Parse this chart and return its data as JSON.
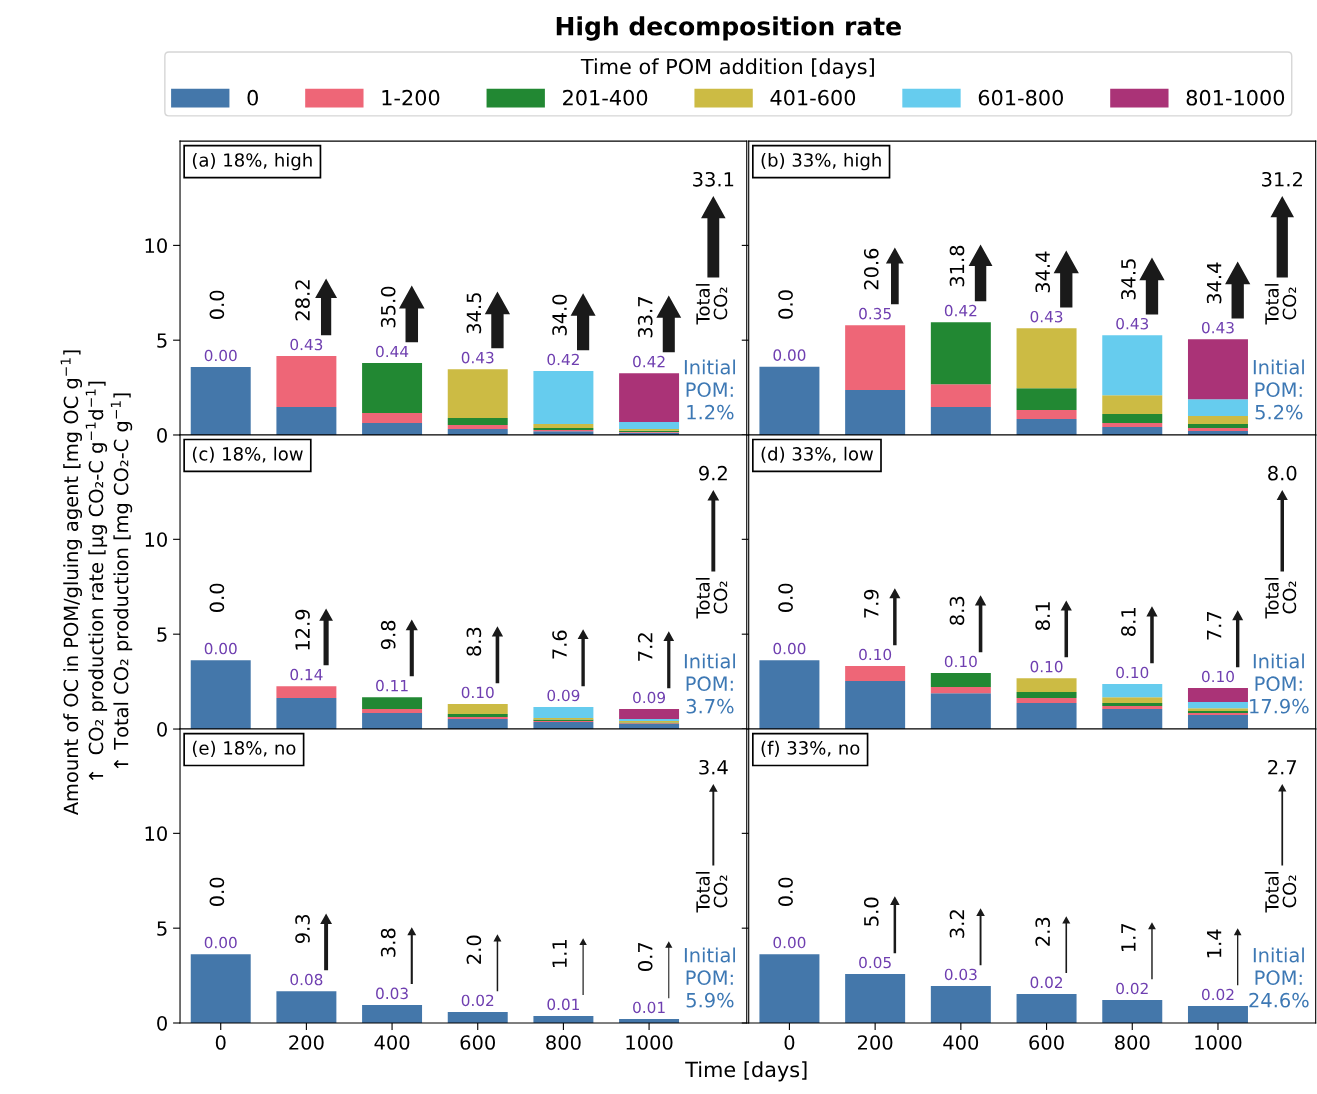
{
  "chart_data": [
    {
      "type": "bar",
      "stacked": true,
      "title": "High decomposition rate",
      "subtitle": "(a) 18%, high",
      "legend_title": "Time of POM addition [days]",
      "legend": "top",
      "grid": false,
      "tick_labels": "y",
      "x": [
        0,
        200,
        400,
        600,
        800,
        1000
      ],
      "xlim": [
        -95,
        1228
      ],
      "ylim": [
        0,
        15.5
      ],
      "xticks": [
        0,
        200,
        400,
        600,
        800,
        1000
      ],
      "yticks": [
        0,
        5,
        10
      ],
      "series": [
        {
          "name": "0",
          "color": "#4477aa",
          "values": [
            3.58,
            1.47,
            0.63,
            0.32,
            0.2,
            0.12
          ]
        },
        {
          "name": "1-200",
          "color": "#ee6677",
          "values": [
            null,
            2.69,
            0.53,
            0.21,
            0.06,
            0.04
          ]
        },
        {
          "name": "201-400",
          "color": "#228833",
          "values": [
            null,
            null,
            2.63,
            0.37,
            0.11,
            0.06
          ]
        },
        {
          "name": "401-600",
          "color": "#ccbb44",
          "values": [
            null,
            null,
            null,
            2.57,
            0.21,
            0.1
          ]
        },
        {
          "name": "601-800",
          "color": "#66ccee",
          "values": [
            null,
            null,
            null,
            null,
            2.79,
            0.36
          ]
        },
        {
          "name": "801-1000",
          "color": "#aa3377",
          "values": [
            null,
            null,
            null,
            null,
            null,
            2.58
          ]
        }
      ],
      "annotations": [
        {
          "text": "0.00",
          "x": 0,
          "y": 3.58
        },
        {
          "text": "0.43",
          "x": 200,
          "y": 4.16
        },
        {
          "text": "0.44",
          "x": 400,
          "y": 3.79
        },
        {
          "text": "0.43",
          "x": 600,
          "y": 3.47
        },
        {
          "text": "0.42",
          "x": 800,
          "y": 3.37
        },
        {
          "text": "0.42",
          "x": 1000,
          "y": 3.26
        },
        "0.0",
        "28.2",
        "35.0",
        "34.5",
        "34.0",
        "33.7",
        "33.1",
        "Total\nCO₂",
        "Initial\nPOM:\n1.2%"
      ]
    },
    {
      "type": "bar",
      "stacked": true,
      "subtitle": "(b) 33%, high",
      "grid": false,
      "tick_labels": false,
      "x": [
        0,
        200,
        400,
        600,
        800,
        1000
      ],
      "xlim": [
        -95,
        1228
      ],
      "ylim": [
        0,
        15.5
      ],
      "xticks": [
        0,
        200,
        400,
        600,
        800,
        1000
      ],
      "yticks": [
        0,
        5,
        10
      ],
      "series": [
        {
          "color": "#4477aa",
          "values": [
            3.6,
            2.37,
            1.47,
            0.84,
            0.42,
            0.21
          ]
        },
        {
          "color": "#ee6677",
          "values": [
            null,
            3.42,
            1.21,
            0.48,
            0.21,
            0.16
          ]
        },
        {
          "color": "#228833",
          "values": [
            null,
            null,
            3.27,
            1.15,
            0.47,
            0.21
          ]
        },
        {
          "color": "#ccbb44",
          "values": [
            null,
            null,
            null,
            3.16,
            1.0,
            0.42
          ]
        },
        {
          "color": "#66ccee",
          "values": [
            null,
            null,
            null,
            null,
            3.16,
            0.89
          ]
        },
        {
          "color": "#aa3377",
          "values": [
            null,
            null,
            null,
            null,
            null,
            3.16
          ]
        }
      ],
      "annotations": [
        {
          "text": "0.00",
          "x": 0,
          "y": 3.6
        },
        {
          "text": "0.35",
          "x": 200,
          "y": 5.79
        },
        {
          "text": "0.42",
          "x": 400,
          "y": 5.95
        },
        {
          "text": "0.43",
          "x": 600,
          "y": 5.63
        },
        {
          "text": "0.43",
          "x": 800,
          "y": 5.26
        },
        {
          "text": "0.43",
          "x": 1000,
          "y": 5.05
        },
        "0.0",
        "20.6",
        "31.8",
        "34.4",
        "34.5",
        "34.4",
        "31.2",
        "Total\nCO₂",
        "Initial\nPOM:\n5.2%"
      ]
    },
    {
      "type": "bar",
      "stacked": true,
      "subtitle": "(c) 18%, low",
      "grid": false,
      "tick_labels": "y",
      "ylabel": "Amount of OC in POM/gluing agent [mg OC g$^{−1}$]\n↑  CO₂ production rate [μg CO₂-C g$^{−1}$d$^{−1}$]\n↑ Total CO₂ production [mg CO₂-C g$^{−1}$]",
      "x": [
        0,
        200,
        400,
        600,
        800,
        1000
      ],
      "xlim": [
        -95,
        1228
      ],
      "ylim": [
        0,
        15.5
      ],
      "xticks": [
        0,
        200,
        400,
        600,
        800,
        1000
      ],
      "yticks": [
        0,
        5,
        10
      ],
      "series": [
        {
          "color": "#4477aa",
          "values": [
            3.63,
            1.63,
            0.84,
            0.53,
            0.37,
            0.26
          ]
        },
        {
          "color": "#ee6677",
          "values": [
            null,
            0.63,
            0.21,
            0.1,
            0.05,
            0.04
          ]
        },
        {
          "color": "#228833",
          "values": [
            null,
            null,
            0.63,
            0.16,
            0.08,
            0.05
          ]
        },
        {
          "color": "#ccbb44",
          "values": [
            null,
            null,
            null,
            0.53,
            0.08,
            0.08
          ]
        },
        {
          "color": "#66ccee",
          "values": [
            null,
            null,
            null,
            null,
            0.58,
            0.1
          ]
        },
        {
          "color": "#aa3377",
          "values": [
            null,
            null,
            null,
            null,
            null,
            0.52
          ]
        }
      ],
      "annotations": [
        {
          "text": "0.00",
          "x": 0,
          "y": 3.63
        },
        {
          "text": "0.14",
          "x": 200,
          "y": 2.26
        },
        {
          "text": "0.11",
          "x": 400,
          "y": 1.68
        },
        {
          "text": "0.10",
          "x": 600,
          "y": 1.32
        },
        {
          "text": "0.09",
          "x": 800,
          "y": 1.16
        },
        {
          "text": "0.09",
          "x": 1000,
          "y": 1.05
        },
        "0.0",
        "12.9",
        "9.8",
        "8.3",
        "7.6",
        "7.2",
        "9.2",
        "Total\nCO₂",
        "Initial\nPOM:\n3.7%"
      ]
    },
    {
      "type": "bar",
      "stacked": true,
      "subtitle": "(d) 33%, low",
      "grid": false,
      "tick_labels": false,
      "x": [
        0,
        200,
        400,
        600,
        800,
        1000
      ],
      "xlim": [
        -95,
        1228
      ],
      "ylim": [
        0,
        15.5
      ],
      "xticks": [
        0,
        200,
        400,
        600,
        800,
        1000
      ],
      "yticks": [
        0,
        5,
        10
      ],
      "series": [
        {
          "color": "#4477aa",
          "values": [
            3.63,
            2.53,
            1.89,
            1.37,
            1.05,
            0.74
          ]
        },
        {
          "color": "#ee6677",
          "values": [
            null,
            0.79,
            0.32,
            0.26,
            0.16,
            0.1
          ]
        },
        {
          "color": "#228833",
          "values": [
            null,
            null,
            0.74,
            0.32,
            0.16,
            0.11
          ]
        },
        {
          "color": "#ccbb44",
          "values": [
            null,
            null,
            null,
            0.73,
            0.31,
            0.15
          ]
        },
        {
          "color": "#66ccee",
          "values": [
            null,
            null,
            null,
            null,
            0.69,
            0.32
          ]
        },
        {
          "color": "#aa3377",
          "values": [
            null,
            null,
            null,
            null,
            null,
            0.74
          ]
        }
      ],
      "annotations": [
        {
          "text": "0.00",
          "x": 0,
          "y": 3.63
        },
        {
          "text": "0.10",
          "x": 200,
          "y": 3.32
        },
        {
          "text": "0.10",
          "x": 400,
          "y": 2.95
        },
        {
          "text": "0.10",
          "x": 600,
          "y": 2.68
        },
        {
          "text": "0.10",
          "x": 800,
          "y": 2.37
        },
        {
          "text": "0.10",
          "x": 1000,
          "y": 2.16
        },
        "0.0",
        "7.9",
        "8.3",
        "8.1",
        "8.1",
        "7.7",
        "8.0",
        "Total\nCO₂",
        "Initial\nPOM:\n17.9%"
      ]
    },
    {
      "type": "bar",
      "stacked": true,
      "subtitle": "(e) 18%, no",
      "grid": false,
      "xlabel": "Time [days]",
      "x": [
        0,
        200,
        400,
        600,
        800,
        1000
      ],
      "xlim": [
        -95,
        1228
      ],
      "ylim": [
        0,
        15.5
      ],
      "xticks": [
        0,
        200,
        400,
        600,
        800,
        1000
      ],
      "yticks": [
        0,
        5,
        10
      ],
      "series": [
        {
          "color": "#4477aa",
          "values": [
            3.63,
            1.68,
            0.95,
            0.58,
            0.37,
            0.21
          ]
        }
      ],
      "annotations": [
        {
          "text": "0.00",
          "x": 0,
          "y": 3.63
        },
        {
          "text": "0.08",
          "x": 200,
          "y": 1.68
        },
        {
          "text": "0.03",
          "x": 400,
          "y": 0.95
        },
        {
          "text": "0.02",
          "x": 600,
          "y": 0.58
        },
        {
          "text": "0.01",
          "x": 800,
          "y": 0.37
        },
        {
          "text": "0.01",
          "x": 1000,
          "y": 0.21
        },
        "0.0",
        "9.3",
        "3.8",
        "2.0",
        "1.1",
        "0.7",
        "3.4",
        "Total\nCO₂",
        "Initial\nPOM:\n5.9%"
      ]
    },
    {
      "type": "bar",
      "stacked": true,
      "subtitle": "(f) 33%, no",
      "grid": false,
      "tick_labels": "x",
      "x": [
        0,
        200,
        400,
        600,
        800,
        1000
      ],
      "xlim": [
        -95,
        1228
      ],
      "ylim": [
        0,
        15.5
      ],
      "xticks": [
        0,
        200,
        400,
        600,
        800,
        1000
      ],
      "yticks": [
        0,
        5,
        10
      ],
      "series": [
        {
          "color": "#4477aa",
          "values": [
            3.63,
            2.58,
            1.95,
            1.53,
            1.21,
            0.89
          ]
        }
      ],
      "annotations": [
        {
          "text": "0.00",
          "x": 0,
          "y": 3.63
        },
        {
          "text": "0.05",
          "x": 200,
          "y": 2.58
        },
        {
          "text": "0.03",
          "x": 400,
          "y": 1.95
        },
        {
          "text": "0.02",
          "x": 600,
          "y": 1.53
        },
        {
          "text": "0.02",
          "x": 800,
          "y": 1.21
        },
        {
          "text": "0.02",
          "x": 1000,
          "y": 0.89
        },
        "0.0",
        "5.0",
        "3.2",
        "2.3",
        "1.7",
        "1.4",
        "2.7",
        "Total\nCO₂",
        "Initial\nPOM:\n24.6%"
      ]
    }
  ]
}
